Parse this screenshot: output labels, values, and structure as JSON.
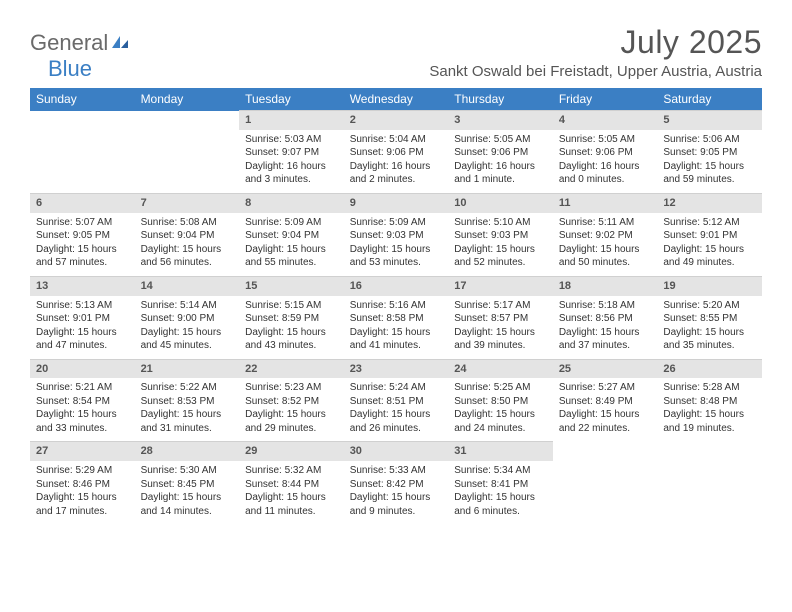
{
  "brand": {
    "name1": "General",
    "name2": "Blue"
  },
  "title": "July 2025",
  "location": "Sankt Oswald bei Freistadt, Upper Austria, Austria",
  "colors": {
    "header_bg": "#3b7fc4",
    "header_text": "#ffffff",
    "daynum_bg": "#e4e4e4",
    "text": "#333333",
    "title_text": "#555555"
  },
  "weekdays": [
    "Sunday",
    "Monday",
    "Tuesday",
    "Wednesday",
    "Thursday",
    "Friday",
    "Saturday"
  ],
  "weeks": [
    [
      null,
      null,
      {
        "n": "1",
        "sr": "5:03 AM",
        "ss": "9:07 PM",
        "dl": "16 hours and 3 minutes."
      },
      {
        "n": "2",
        "sr": "5:04 AM",
        "ss": "9:06 PM",
        "dl": "16 hours and 2 minutes."
      },
      {
        "n": "3",
        "sr": "5:05 AM",
        "ss": "9:06 PM",
        "dl": "16 hours and 1 minute."
      },
      {
        "n": "4",
        "sr": "5:05 AM",
        "ss": "9:06 PM",
        "dl": "16 hours and 0 minutes."
      },
      {
        "n": "5",
        "sr": "5:06 AM",
        "ss": "9:05 PM",
        "dl": "15 hours and 59 minutes."
      }
    ],
    [
      {
        "n": "6",
        "sr": "5:07 AM",
        "ss": "9:05 PM",
        "dl": "15 hours and 57 minutes."
      },
      {
        "n": "7",
        "sr": "5:08 AM",
        "ss": "9:04 PM",
        "dl": "15 hours and 56 minutes."
      },
      {
        "n": "8",
        "sr": "5:09 AM",
        "ss": "9:04 PM",
        "dl": "15 hours and 55 minutes."
      },
      {
        "n": "9",
        "sr": "5:09 AM",
        "ss": "9:03 PM",
        "dl": "15 hours and 53 minutes."
      },
      {
        "n": "10",
        "sr": "5:10 AM",
        "ss": "9:03 PM",
        "dl": "15 hours and 52 minutes."
      },
      {
        "n": "11",
        "sr": "5:11 AM",
        "ss": "9:02 PM",
        "dl": "15 hours and 50 minutes."
      },
      {
        "n": "12",
        "sr": "5:12 AM",
        "ss": "9:01 PM",
        "dl": "15 hours and 49 minutes."
      }
    ],
    [
      {
        "n": "13",
        "sr": "5:13 AM",
        "ss": "9:01 PM",
        "dl": "15 hours and 47 minutes."
      },
      {
        "n": "14",
        "sr": "5:14 AM",
        "ss": "9:00 PM",
        "dl": "15 hours and 45 minutes."
      },
      {
        "n": "15",
        "sr": "5:15 AM",
        "ss": "8:59 PM",
        "dl": "15 hours and 43 minutes."
      },
      {
        "n": "16",
        "sr": "5:16 AM",
        "ss": "8:58 PM",
        "dl": "15 hours and 41 minutes."
      },
      {
        "n": "17",
        "sr": "5:17 AM",
        "ss": "8:57 PM",
        "dl": "15 hours and 39 minutes."
      },
      {
        "n": "18",
        "sr": "5:18 AM",
        "ss": "8:56 PM",
        "dl": "15 hours and 37 minutes."
      },
      {
        "n": "19",
        "sr": "5:20 AM",
        "ss": "8:55 PM",
        "dl": "15 hours and 35 minutes."
      }
    ],
    [
      {
        "n": "20",
        "sr": "5:21 AM",
        "ss": "8:54 PM",
        "dl": "15 hours and 33 minutes."
      },
      {
        "n": "21",
        "sr": "5:22 AM",
        "ss": "8:53 PM",
        "dl": "15 hours and 31 minutes."
      },
      {
        "n": "22",
        "sr": "5:23 AM",
        "ss": "8:52 PM",
        "dl": "15 hours and 29 minutes."
      },
      {
        "n": "23",
        "sr": "5:24 AM",
        "ss": "8:51 PM",
        "dl": "15 hours and 26 minutes."
      },
      {
        "n": "24",
        "sr": "5:25 AM",
        "ss": "8:50 PM",
        "dl": "15 hours and 24 minutes."
      },
      {
        "n": "25",
        "sr": "5:27 AM",
        "ss": "8:49 PM",
        "dl": "15 hours and 22 minutes."
      },
      {
        "n": "26",
        "sr": "5:28 AM",
        "ss": "8:48 PM",
        "dl": "15 hours and 19 minutes."
      }
    ],
    [
      {
        "n": "27",
        "sr": "5:29 AM",
        "ss": "8:46 PM",
        "dl": "15 hours and 17 minutes."
      },
      {
        "n": "28",
        "sr": "5:30 AM",
        "ss": "8:45 PM",
        "dl": "15 hours and 14 minutes."
      },
      {
        "n": "29",
        "sr": "5:32 AM",
        "ss": "8:44 PM",
        "dl": "15 hours and 11 minutes."
      },
      {
        "n": "30",
        "sr": "5:33 AM",
        "ss": "8:42 PM",
        "dl": "15 hours and 9 minutes."
      },
      {
        "n": "31",
        "sr": "5:34 AM",
        "ss": "8:41 PM",
        "dl": "15 hours and 6 minutes."
      },
      null,
      null
    ]
  ],
  "labels": {
    "sunrise": "Sunrise:",
    "sunset": "Sunset:",
    "daylight": "Daylight:"
  }
}
